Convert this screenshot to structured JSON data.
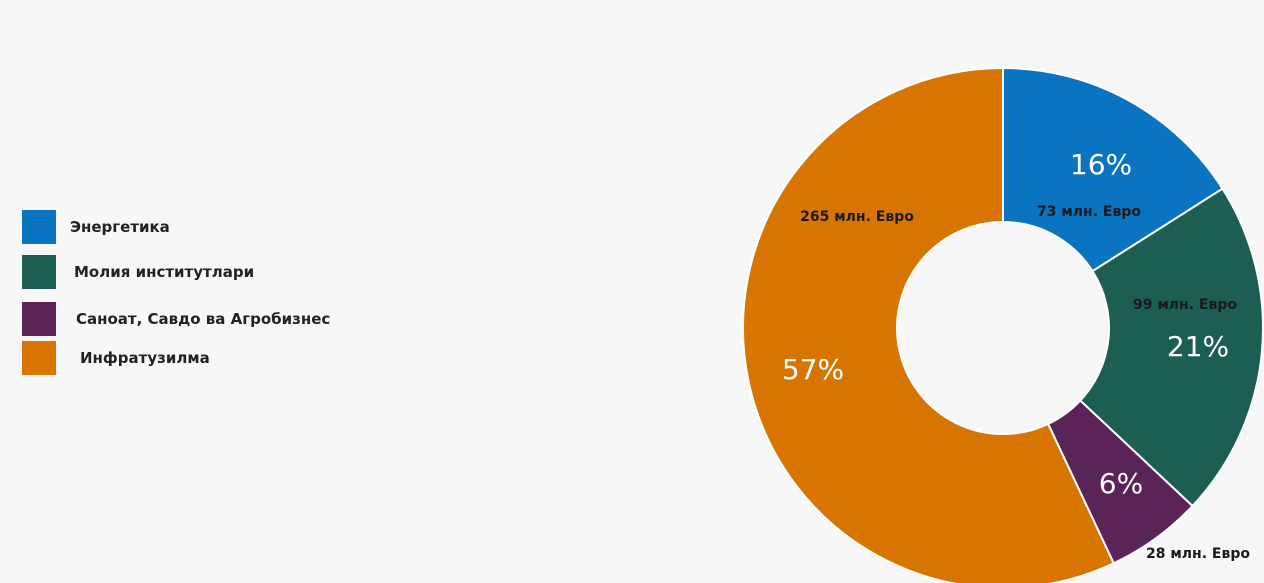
{
  "chart_data": {
    "type": "pie",
    "donut": true,
    "title": "",
    "legend_position": "left",
    "slices": [
      {
        "name": "Энергетика",
        "percent": 16,
        "percent_label": "16%",
        "value_label": "73 млн. Евро",
        "color": "#0a74c1"
      },
      {
        "name": "Молия институтлари",
        "percent": 21,
        "percent_label": "21%",
        "value_label": "99 млн. Евро",
        "color": "#1c5e52"
      },
      {
        "name": "Саноат, Савдо ва Агробизнес",
        "percent": 6,
        "percent_label": "6%",
        "value_label": "28 млн. Евро",
        "color": "#5a2458"
      },
      {
        "name": "Инфратузилма",
        "percent": 57,
        "percent_label": "57%",
        "value_label": "265 млн. Евро",
        "color": "#d77500"
      }
    ]
  }
}
